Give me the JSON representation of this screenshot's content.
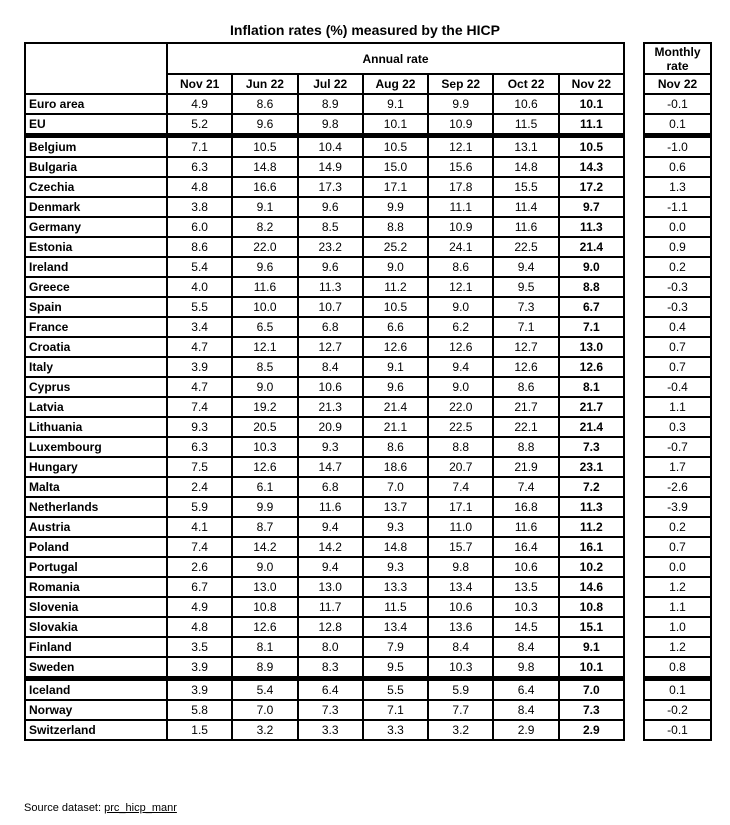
{
  "title": "Inflation rates (%) measured by the HICP",
  "annual_header": "Annual rate",
  "monthly_header": "Monthly rate",
  "columns": [
    "Nov 21",
    "Jun 22",
    "Jul 22",
    "Aug 22",
    "Sep 22",
    "Oct 22",
    "Nov 22"
  ],
  "monthly_column": "Nov 22",
  "groups": [
    [
      {
        "name": "Euro area",
        "values": [
          "4.9",
          "8.6",
          "8.9",
          "9.1",
          "9.9",
          "10.6",
          "10.1"
        ],
        "monthly": "-0.1"
      },
      {
        "name": "EU",
        "values": [
          "5.2",
          "9.6",
          "9.8",
          "10.1",
          "10.9",
          "11.5",
          "11.1"
        ],
        "monthly": "0.1"
      }
    ],
    [
      {
        "name": "Belgium",
        "values": [
          "7.1",
          "10.5",
          "10.4",
          "10.5",
          "12.1",
          "13.1",
          "10.5"
        ],
        "monthly": "-1.0"
      },
      {
        "name": "Bulgaria",
        "values": [
          "6.3",
          "14.8",
          "14.9",
          "15.0",
          "15.6",
          "14.8",
          "14.3"
        ],
        "monthly": "0.6"
      },
      {
        "name": "Czechia",
        "values": [
          "4.8",
          "16.6",
          "17.3",
          "17.1",
          "17.8",
          "15.5",
          "17.2"
        ],
        "monthly": "1.3"
      },
      {
        "name": "Denmark",
        "values": [
          "3.8",
          "9.1",
          "9.6",
          "9.9",
          "11.1",
          "11.4",
          "9.7"
        ],
        "monthly": "-1.1"
      },
      {
        "name": "Germany",
        "values": [
          "6.0",
          "8.2",
          "8.5",
          "8.8",
          "10.9",
          "11.6",
          "11.3"
        ],
        "monthly": "0.0"
      },
      {
        "name": "Estonia",
        "values": [
          "8.6",
          "22.0",
          "23.2",
          "25.2",
          "24.1",
          "22.5",
          "21.4"
        ],
        "monthly": "0.9"
      },
      {
        "name": "Ireland",
        "values": [
          "5.4",
          "9.6",
          "9.6",
          "9.0",
          "8.6",
          "9.4",
          "9.0"
        ],
        "monthly": "0.2"
      },
      {
        "name": "Greece",
        "values": [
          "4.0",
          "11.6",
          "11.3",
          "11.2",
          "12.1",
          "9.5",
          "8.8"
        ],
        "monthly": "-0.3"
      },
      {
        "name": "Spain",
        "values": [
          "5.5",
          "10.0",
          "10.7",
          "10.5",
          "9.0",
          "7.3",
          "6.7"
        ],
        "monthly": "-0.3"
      },
      {
        "name": "France",
        "values": [
          "3.4",
          "6.5",
          "6.8",
          "6.6",
          "6.2",
          "7.1",
          "7.1"
        ],
        "monthly": "0.4"
      },
      {
        "name": "Croatia",
        "values": [
          "4.7",
          "12.1",
          "12.7",
          "12.6",
          "12.6",
          "12.7",
          "13.0"
        ],
        "monthly": "0.7"
      },
      {
        "name": "Italy",
        "values": [
          "3.9",
          "8.5",
          "8.4",
          "9.1",
          "9.4",
          "12.6",
          "12.6"
        ],
        "monthly": "0.7"
      },
      {
        "name": "Cyprus",
        "values": [
          "4.7",
          "9.0",
          "10.6",
          "9.6",
          "9.0",
          "8.6",
          "8.1"
        ],
        "monthly": "-0.4"
      },
      {
        "name": "Latvia",
        "values": [
          "7.4",
          "19.2",
          "21.3",
          "21.4",
          "22.0",
          "21.7",
          "21.7"
        ],
        "monthly": "1.1"
      },
      {
        "name": "Lithuania",
        "values": [
          "9.3",
          "20.5",
          "20.9",
          "21.1",
          "22.5",
          "22.1",
          "21.4"
        ],
        "monthly": "0.3"
      },
      {
        "name": "Luxembourg",
        "values": [
          "6.3",
          "10.3",
          "9.3",
          "8.6",
          "8.8",
          "8.8",
          "7.3"
        ],
        "monthly": "-0.7"
      },
      {
        "name": "Hungary",
        "values": [
          "7.5",
          "12.6",
          "14.7",
          "18.6",
          "20.7",
          "21.9",
          "23.1"
        ],
        "monthly": "1.7"
      },
      {
        "name": "Malta",
        "values": [
          "2.4",
          "6.1",
          "6.8",
          "7.0",
          "7.4",
          "7.4",
          "7.2"
        ],
        "monthly": "-2.6"
      },
      {
        "name": "Netherlands",
        "values": [
          "5.9",
          "9.9",
          "11.6",
          "13.7",
          "17.1",
          "16.8",
          "11.3"
        ],
        "monthly": "-3.9"
      },
      {
        "name": "Austria",
        "values": [
          "4.1",
          "8.7",
          "9.4",
          "9.3",
          "11.0",
          "11.6",
          "11.2"
        ],
        "monthly": "0.2"
      },
      {
        "name": "Poland",
        "values": [
          "7.4",
          "14.2",
          "14.2",
          "14.8",
          "15.7",
          "16.4",
          "16.1"
        ],
        "monthly": "0.7"
      },
      {
        "name": "Portugal",
        "values": [
          "2.6",
          "9.0",
          "9.4",
          "9.3",
          "9.8",
          "10.6",
          "10.2"
        ],
        "monthly": "0.0"
      },
      {
        "name": "Romania",
        "values": [
          "6.7",
          "13.0",
          "13.0",
          "13.3",
          "13.4",
          "13.5",
          "14.6"
        ],
        "monthly": "1.2"
      },
      {
        "name": "Slovenia",
        "values": [
          "4.9",
          "10.8",
          "11.7",
          "11.5",
          "10.6",
          "10.3",
          "10.8"
        ],
        "monthly": "1.1"
      },
      {
        "name": "Slovakia",
        "values": [
          "4.8",
          "12.6",
          "12.8",
          "13.4",
          "13.6",
          "14.5",
          "15.1"
        ],
        "monthly": "1.0"
      },
      {
        "name": "Finland",
        "values": [
          "3.5",
          "8.1",
          "8.0",
          "7.9",
          "8.4",
          "8.4",
          "9.1"
        ],
        "monthly": "1.2"
      },
      {
        "name": "Sweden",
        "values": [
          "3.9",
          "8.9",
          "8.3",
          "9.5",
          "10.3",
          "9.8",
          "10.1"
        ],
        "monthly": "0.8"
      }
    ],
    [
      {
        "name": "Iceland",
        "values": [
          "3.9",
          "5.4",
          "6.4",
          "5.5",
          "5.9",
          "6.4",
          "7.0"
        ],
        "monthly": "0.1"
      },
      {
        "name": "Norway",
        "values": [
          "5.8",
          "7.0",
          "7.3",
          "7.1",
          "7.7",
          "8.4",
          "7.3"
        ],
        "monthly": "-0.2"
      },
      {
        "name": "Switzerland",
        "values": [
          "1.5",
          "3.2",
          "3.3",
          "3.3",
          "3.2",
          "2.9",
          "2.9"
        ],
        "monthly": "-0.1"
      }
    ]
  ],
  "source_label": "Source dataset:",
  "source_link": "prc_hicp_manr"
}
